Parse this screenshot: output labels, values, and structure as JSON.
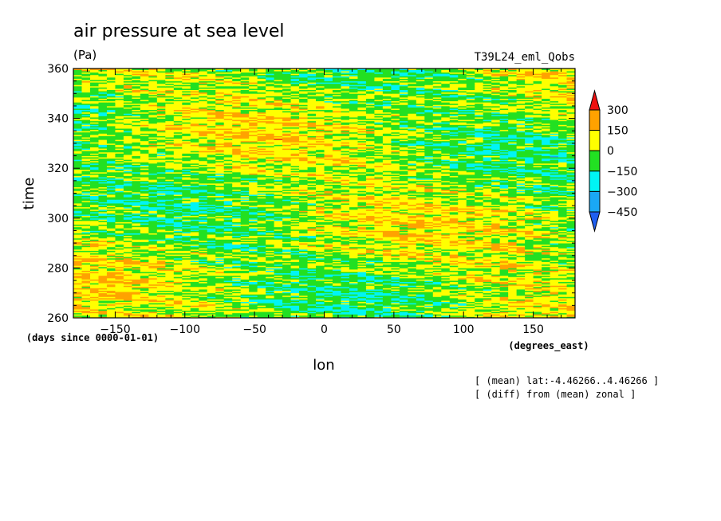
{
  "chart_data": {
    "type": "heatmap",
    "title": "air pressure at sea level",
    "units": "(Pa)",
    "run_label": "T39L24_eml_Qobs",
    "xlabel": "lon",
    "xunits": "(degrees_east)",
    "ylabel": "time",
    "yunits": "(days since 0000-01-01)",
    "xlim": [
      -180,
      180
    ],
    "ylim": [
      260,
      360
    ],
    "xticks": [
      -150,
      -100,
      -50,
      0,
      50,
      100,
      150
    ],
    "yticks": [
      260,
      280,
      300,
      320,
      340,
      360
    ],
    "notes": [
      "[ (mean) lat:-4.46266..4.46266 ]",
      "[ (diff) from (mean) zonal ]"
    ],
    "colorbar": {
      "levels": [
        -450,
        -300,
        -150,
        0,
        150,
        300
      ],
      "tick_labels": [
        "300",
        "150",
        "0",
        "−150",
        "−300",
        "−450"
      ],
      "colors": {
        "below_-450": "#1f5ff0",
        "-450_-300": "#1aa8f5",
        "-300_-150": "#00f5f5",
        "-150_0": "#22e022",
        "0_150": "#ffff00",
        "150_300": "#ffa200",
        "above_300": "#ee1111"
      }
    }
  }
}
